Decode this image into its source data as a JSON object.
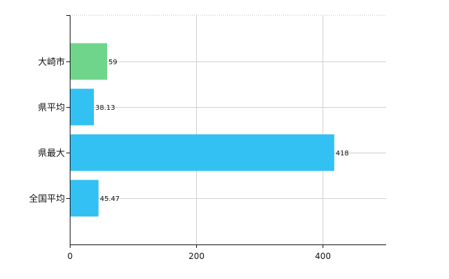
{
  "chart_data": {
    "type": "bar",
    "orientation": "horizontal",
    "categories": [
      "大崎市",
      "県平均",
      "県最大",
      "全国平均"
    ],
    "values": [
      59,
      38.13,
      418,
      45.47
    ],
    "value_labels": [
      "59",
      "38.13",
      "418",
      "45.47"
    ],
    "bar_colors": [
      "#6fd58a",
      "#33c0f2",
      "#33c0f2",
      "#33c0f2"
    ],
    "title": "",
    "xlabel": "",
    "ylabel": "",
    "xlim": [
      0,
      500
    ],
    "xticks": [
      0,
      200,
      400
    ],
    "grid": true,
    "legend": "none"
  }
}
